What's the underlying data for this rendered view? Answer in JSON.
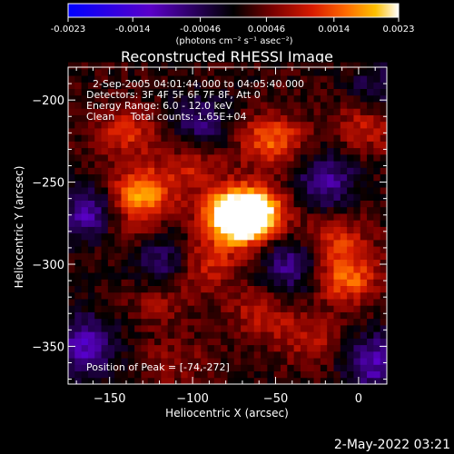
{
  "chart_data": {
    "type": "heatmap",
    "title": "Reconstructed RHESSI Image",
    "colorbar": {
      "min": -0.0023,
      "max": 0.0023,
      "tick_labels": [
        "-0.0023",
        "-0.0014",
        "-0.00046",
        "0.00046",
        "0.0014",
        "0.0023"
      ],
      "unit_label": "(photons cm⁻² s⁻¹ asec⁻²)",
      "colormap": [
        "#0000ff",
        "#5a00c8",
        "#000000",
        "#7a0000",
        "#d81b00",
        "#ff6a00",
        "#ffc000",
        "#ffffff"
      ]
    },
    "annotations": [
      "2-Sep-2005 04:01:44.000 to 04:05:40.000",
      "Detectors: 3F 4F 5F 6F 7F 8F, Att 0",
      "Energy Range: 6.0 - 12.0 keV",
      "Clean     Total counts: 1.65E+04"
    ],
    "peak_label": "Position of Peak = [-74,-272]",
    "peak": {
      "x": -74,
      "y": -272
    },
    "xlabel": "Heliocentric X (arcsec)",
    "ylabel": "Heliocentric Y (arcsec)",
    "xlim": [
      -175,
      17
    ],
    "ylim": [
      -373,
      -180
    ],
    "xticks": [
      -150,
      -100,
      -50,
      0
    ],
    "yticks": [
      -200,
      -250,
      -300,
      -350
    ],
    "blobs": [
      {
        "x": -74,
        "y": -272,
        "intensity": 1.0
      },
      {
        "x": -64,
        "y": -268,
        "intensity": 0.85
      },
      {
        "x": -132,
        "y": -257,
        "intensity": 0.7
      },
      {
        "x": -52,
        "y": -224,
        "intensity": 0.55
      },
      {
        "x": -8,
        "y": -308,
        "intensity": 0.6
      },
      {
        "x": -15,
        "y": -283,
        "intensity": 0.4
      },
      {
        "x": -140,
        "y": -220,
        "intensity": 0.4
      },
      {
        "x": -90,
        "y": -300,
        "intensity": 0.35
      },
      {
        "x": -120,
        "y": -320,
        "intensity": 0.3
      },
      {
        "x": -30,
        "y": -345,
        "intensity": 0.3
      },
      {
        "x": -100,
        "y": -240,
        "intensity": 0.35
      },
      {
        "x": -145,
        "y": -280,
        "intensity": 0.3
      },
      {
        "x": 5,
        "y": -215,
        "intensity": 0.4
      },
      {
        "x": -60,
        "y": -330,
        "intensity": 0.3
      },
      {
        "x": -110,
        "y": -360,
        "intensity": 0.2
      }
    ],
    "negatives": [
      {
        "x": -160,
        "y": -270,
        "intensity": 0.6
      },
      {
        "x": -165,
        "y": -350,
        "intensity": 0.55
      },
      {
        "x": -120,
        "y": -300,
        "intensity": 0.4
      },
      {
        "x": -40,
        "y": -300,
        "intensity": 0.45
      },
      {
        "x": 10,
        "y": -360,
        "intensity": 0.5
      },
      {
        "x": -20,
        "y": -250,
        "intensity": 0.45
      },
      {
        "x": -95,
        "y": -215,
        "intensity": 0.35
      },
      {
        "x": 12,
        "y": -195,
        "intensity": 0.3
      }
    ]
  },
  "timestamp": "2-May-2022 03:21"
}
